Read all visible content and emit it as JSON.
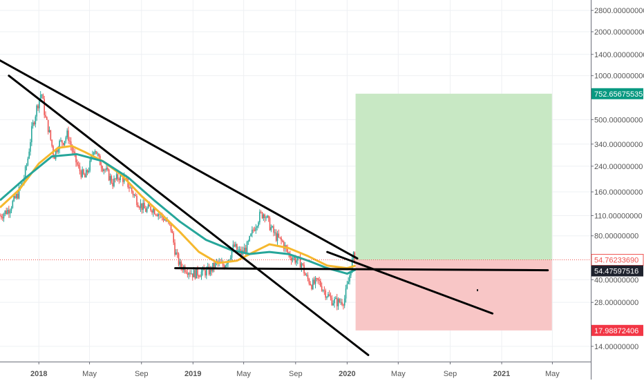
{
  "colors": {
    "background": "#ffffff",
    "grid": "#eef0f3",
    "axis_text": "#555555",
    "candle_up": "#26a69a",
    "candle_down": "#ef5350",
    "ma_slow": "#26a69a",
    "ma_fast": "#f5b82e",
    "trendline": "#000000",
    "target_zone": "#c8e8c4",
    "stop_zone": "#f8c6c6",
    "price_line": "#ef5350"
  },
  "chart_data": {
    "type": "candlestick",
    "y_scale": "log",
    "ylim": [
      11,
      3300
    ],
    "x_range": [
      "2017-10-01",
      "2021-07-31"
    ],
    "x_ticks": [
      {
        "label": "2018",
        "date": "2018-01-01",
        "bold": true
      },
      {
        "label": "May",
        "date": "2018-05-01",
        "bold": false
      },
      {
        "label": "Sep",
        "date": "2018-09-01",
        "bold": false
      },
      {
        "label": "2019",
        "date": "2019-01-01",
        "bold": true
      },
      {
        "label": "May",
        "date": "2019-05-01",
        "bold": false
      },
      {
        "label": "Sep",
        "date": "2019-09-01",
        "bold": false
      },
      {
        "label": "2020",
        "date": "2020-01-01",
        "bold": true
      },
      {
        "label": "May",
        "date": "2020-05-01",
        "bold": false
      },
      {
        "label": "Sep",
        "date": "2020-09-01",
        "bold": false
      },
      {
        "label": "2021",
        "date": "2021-01-01",
        "bold": true
      },
      {
        "label": "May",
        "date": "2021-05-01",
        "bold": false
      }
    ],
    "y_ticks": [
      {
        "label": "2800.00000000",
        "value": 2800
      },
      {
        "label": "2000.00000000",
        "value": 2000
      },
      {
        "label": "1400.00000000",
        "value": 1400
      },
      {
        "label": "1000.00000000",
        "value": 1000
      },
      {
        "label": "500.00000000",
        "value": 500
      },
      {
        "label": "340.00000000",
        "value": 340
      },
      {
        "label": "240.00000000",
        "value": 240
      },
      {
        "label": "160.00000000",
        "value": 160
      },
      {
        "label": "110.00000000",
        "value": 110
      },
      {
        "label": "80.00000000",
        "value": 80
      },
      {
        "label": "40.00000000",
        "value": 40
      },
      {
        "label": "28.00000000",
        "value": 28
      },
      {
        "label": "14.00000000",
        "value": 14
      }
    ],
    "price_badges": [
      {
        "label": "752.65675535",
        "value": 752.66,
        "color": "#089981",
        "text_color": "#ffffff"
      },
      {
        "label": "54.76233690",
        "value": 54.76,
        "color": "#ffffff",
        "text_color": "#ef5350",
        "border": "#ef5350"
      },
      {
        "label": "54.47597516",
        "value": 54.48,
        "color": "#1e222d",
        "text_color": "#ffffff"
      },
      {
        "label": "17.98872406",
        "value": 17.99,
        "color": "#f23645",
        "text_color": "#ffffff"
      }
    ],
    "last_price": 54.76,
    "series": [
      {
        "name": "price",
        "kind": "close_path",
        "points": [
          [
            "2017-10-01",
            110
          ],
          [
            "2017-10-20",
            120
          ],
          [
            "2017-11-10",
            150
          ],
          [
            "2017-11-25",
            190
          ],
          [
            "2017-12-05",
            260
          ],
          [
            "2017-12-15",
            420
          ],
          [
            "2017-12-28",
            620
          ],
          [
            "2018-01-07",
            780
          ],
          [
            "2018-01-16",
            520
          ],
          [
            "2018-01-24",
            430
          ],
          [
            "2018-02-06",
            280
          ],
          [
            "2018-02-16",
            340
          ],
          [
            "2018-03-01",
            360
          ],
          [
            "2018-03-10",
            400
          ],
          [
            "2018-03-22",
            300
          ],
          [
            "2018-04-05",
            230
          ],
          [
            "2018-04-20",
            200
          ],
          [
            "2018-05-03",
            250
          ],
          [
            "2018-05-12",
            330
          ],
          [
            "2018-05-24",
            260
          ],
          [
            "2018-06-10",
            220
          ],
          [
            "2018-06-25",
            185
          ],
          [
            "2018-07-10",
            205
          ],
          [
            "2018-07-24",
            195
          ],
          [
            "2018-08-10",
            160
          ],
          [
            "2018-08-25",
            135
          ],
          [
            "2018-09-10",
            120
          ],
          [
            "2018-09-25",
            125
          ],
          [
            "2018-10-10",
            115
          ],
          [
            "2018-10-25",
            105
          ],
          [
            "2018-11-10",
            90
          ],
          [
            "2018-11-20",
            62
          ],
          [
            "2018-12-01",
            50
          ],
          [
            "2018-12-15",
            48
          ],
          [
            "2019-01-01",
            44
          ],
          [
            "2019-01-20",
            45
          ],
          [
            "2019-02-10",
            46
          ],
          [
            "2019-02-25",
            52
          ],
          [
            "2019-03-15",
            50
          ],
          [
            "2019-03-28",
            58
          ],
          [
            "2019-04-08",
            68
          ],
          [
            "2019-04-25",
            60
          ],
          [
            "2019-05-10",
            68
          ],
          [
            "2019-05-25",
            90
          ],
          [
            "2019-06-08",
            110
          ],
          [
            "2019-06-20",
            115
          ],
          [
            "2019-07-01",
            95
          ],
          [
            "2019-07-15",
            80
          ],
          [
            "2019-08-01",
            72
          ],
          [
            "2019-08-15",
            60
          ],
          [
            "2019-09-01",
            55
          ],
          [
            "2019-09-15",
            52
          ],
          [
            "2019-09-25",
            42
          ],
          [
            "2019-10-10",
            37
          ],
          [
            "2019-10-25",
            39
          ],
          [
            "2019-11-10",
            33
          ],
          [
            "2019-11-25",
            29
          ],
          [
            "2019-12-10",
            28
          ],
          [
            "2019-12-25",
            29
          ],
          [
            "2020-01-05",
            40
          ],
          [
            "2020-01-15",
            58
          ],
          [
            "2020-01-21",
            54.76
          ]
        ]
      },
      {
        "name": "ma_fast",
        "kind": "line",
        "points": [
          [
            "2017-10-01",
            125
          ],
          [
            "2017-11-15",
            165
          ],
          [
            "2018-01-01",
            250
          ],
          [
            "2018-02-15",
            320
          ],
          [
            "2018-03-20",
            330
          ],
          [
            "2018-04-20",
            300
          ],
          [
            "2018-06-01",
            260
          ],
          [
            "2018-07-15",
            210
          ],
          [
            "2018-09-01",
            150
          ],
          [
            "2018-10-15",
            115
          ],
          [
            "2018-12-01",
            85
          ],
          [
            "2019-01-15",
            62
          ],
          [
            "2019-03-01",
            52
          ],
          [
            "2019-04-15",
            54
          ],
          [
            "2019-05-25",
            62
          ],
          [
            "2019-07-01",
            70
          ],
          [
            "2019-08-15",
            66
          ],
          [
            "2019-10-01",
            58
          ],
          [
            "2019-11-15",
            50
          ],
          [
            "2020-01-01",
            48
          ],
          [
            "2020-01-21",
            50
          ]
        ]
      },
      {
        "name": "ma_slow",
        "kind": "line",
        "points": [
          [
            "2017-10-01",
            140
          ],
          [
            "2017-12-01",
            200
          ],
          [
            "2018-02-01",
            280
          ],
          [
            "2018-04-01",
            290
          ],
          [
            "2018-06-01",
            260
          ],
          [
            "2018-08-01",
            200
          ],
          [
            "2018-10-01",
            140
          ],
          [
            "2018-12-01",
            100
          ],
          [
            "2019-02-01",
            75
          ],
          [
            "2019-04-01",
            64
          ],
          [
            "2019-05-15",
            60
          ],
          [
            "2019-07-01",
            62
          ],
          [
            "2019-08-15",
            60
          ],
          [
            "2019-10-01",
            54
          ],
          [
            "2019-11-15",
            48
          ],
          [
            "2020-01-01",
            44
          ],
          [
            "2020-01-21",
            47
          ]
        ]
      }
    ],
    "trendlines": [
      {
        "name": "upper-resistance",
        "from": [
          "2017-09-15",
          1350
        ],
        "to": [
          "2020-01-25",
          56
        ]
      },
      {
        "name": "steep-resistance",
        "from": [
          "2017-10-22",
          1000
        ],
        "to": [
          "2020-02-20",
          12.2
        ]
      },
      {
        "name": "support",
        "from": [
          "2018-11-20",
          48
        ],
        "to": [
          "2021-04-20",
          46.5
        ]
      },
      {
        "name": "projection",
        "from": [
          "2019-11-15",
          62
        ],
        "to": [
          "2020-12-10",
          23.5
        ]
      }
    ],
    "zones": [
      {
        "name": "target-zone",
        "x_from": "2020-01-21",
        "x_to": "2021-04-30",
        "y_from": 54.76,
        "y_to": 752.66
      },
      {
        "name": "stop-zone",
        "x_from": "2020-01-21",
        "x_to": "2021-04-30",
        "y_from": 17.99,
        "y_to": 54.76
      }
    ],
    "grid": true,
    "legend": "none"
  }
}
